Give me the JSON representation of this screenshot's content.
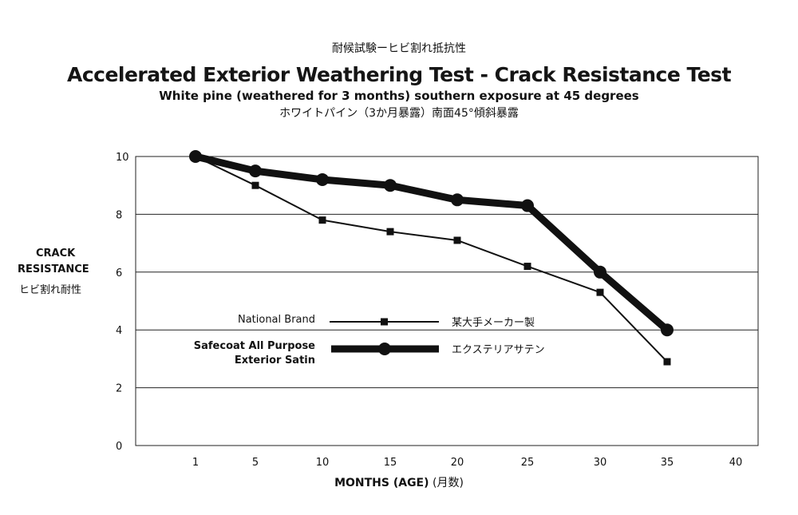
{
  "header": {
    "title_jp": "耐候試験ーヒビ割れ抵抗性",
    "title": "Accelerated Exterior Weathering Test - Crack Resistance Test",
    "subtitle": "White pine (weathered for 3 months) southern exposure at 45 degrees",
    "subtitle_jp": "ホワイトパイン（3か月暴露）南面45°傾斜暴露"
  },
  "chart_data": {
    "type": "line",
    "title": "Accelerated Exterior Weathering Test - Crack Resistance Test",
    "subtitle": "White pine (weathered for 3 months) southern exposure at 45 degrees",
    "ylabel_line1": "CRACK",
    "ylabel_line2": "RESISTANCE",
    "ylabel_jp": "ヒビ割れ耐性",
    "xlabel": "MONTHS (AGE)",
    "xlabel_jp": "(月数)",
    "x_ticks": [
      "1",
      "5",
      "10",
      "15",
      "20",
      "25",
      "30",
      "35",
      "40"
    ],
    "y_ticks": [
      "0",
      "2",
      "4",
      "6",
      "8",
      "10"
    ],
    "ylim": [
      0,
      10
    ],
    "grid": true,
    "legend_position": "center-left",
    "series": [
      {
        "name": "National Brand",
        "name_jp": "某大手メーカー製",
        "marker": "square",
        "style": "thin",
        "color": "#111111",
        "points": [
          [
            1,
            10
          ],
          [
            5,
            9
          ],
          [
            10,
            7.8
          ],
          [
            15,
            7.4
          ],
          [
            20,
            7.1
          ],
          [
            25,
            6.2
          ],
          [
            30,
            5.3
          ],
          [
            35,
            2.9
          ]
        ]
      },
      {
        "name_lines": [
          "Safecoat All Purpose",
          "Exterior Satin"
        ],
        "name_jp": "エクステリアサテン",
        "marker": "circle",
        "style": "thick",
        "color": "#111111",
        "points": [
          [
            1,
            10
          ],
          [
            5,
            9.5
          ],
          [
            10,
            9.2
          ],
          [
            15,
            9
          ],
          [
            20,
            8.5
          ],
          [
            25,
            8.3
          ],
          [
            30,
            6
          ],
          [
            35,
            4
          ]
        ]
      }
    ]
  }
}
